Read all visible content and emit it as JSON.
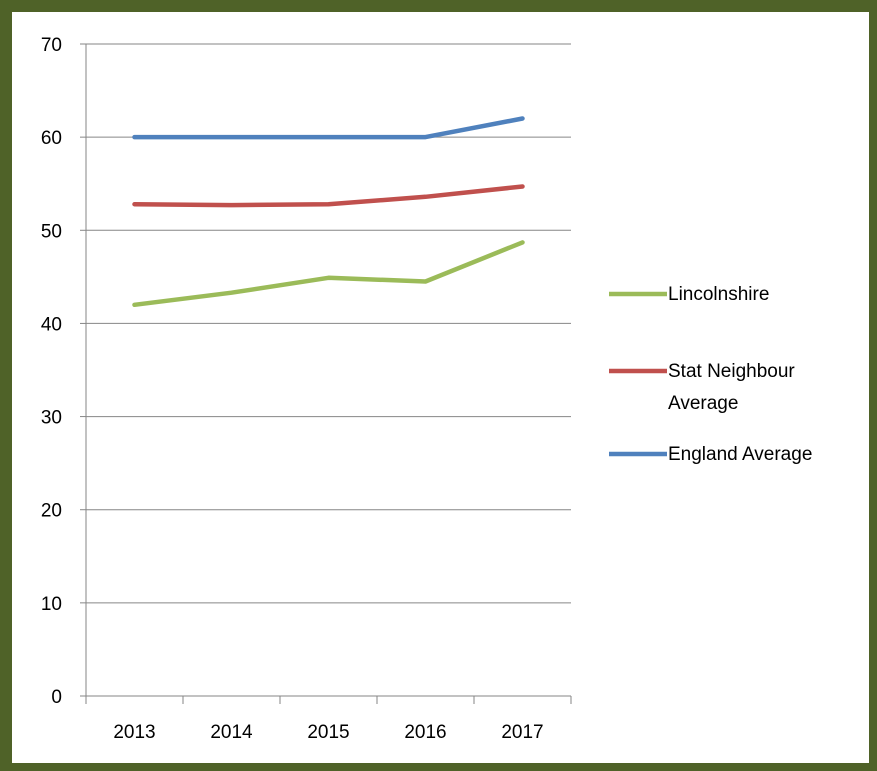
{
  "chart_data": {
    "type": "line",
    "title": "",
    "xlabel": "",
    "ylabel": "",
    "categories": [
      "2013",
      "2014",
      "2015",
      "2016",
      "2017"
    ],
    "ylim": [
      0,
      70
    ],
    "yticks": [
      0,
      10,
      20,
      30,
      40,
      50,
      60,
      70
    ],
    "grid": true,
    "legend_position": "right",
    "series": [
      {
        "name": "Lincolnshire",
        "name_lines": [
          "Lincolnshire"
        ],
        "color": "#9bbb59",
        "values": [
          42.0,
          43.3,
          44.9,
          44.5,
          48.7
        ]
      },
      {
        "name": "Stat Neighbour Average",
        "name_lines": [
          "Stat Neighbour",
          "Average"
        ],
        "color": "#c0504d",
        "values": [
          52.8,
          52.7,
          52.8,
          53.6,
          54.7
        ]
      },
      {
        "name": "England Average",
        "name_lines": [
          "England Average"
        ],
        "color": "#4f81bd",
        "values": [
          60.0,
          60.0,
          60.0,
          60.0,
          62.0
        ]
      }
    ]
  },
  "frame_color": "#4f6228"
}
